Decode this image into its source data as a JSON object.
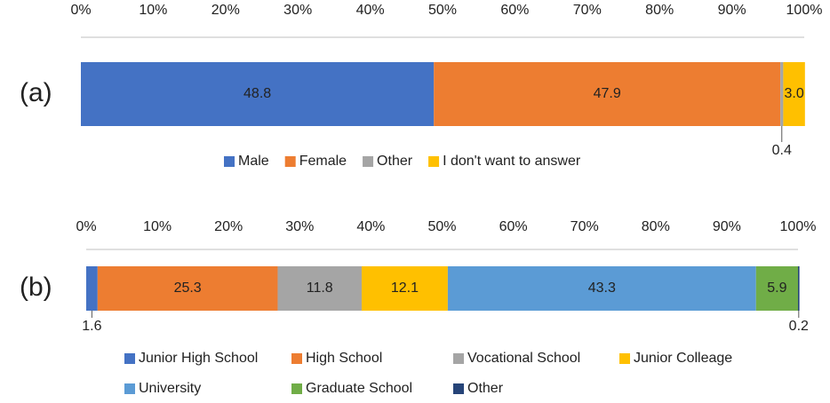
{
  "chart_data": [
    {
      "type": "stacked-bar",
      "panel_label": "(a)",
      "xlim": [
        0,
        100
      ],
      "xticks": [
        {
          "value": 0,
          "label": "0%"
        },
        {
          "value": 10,
          "label": "10%"
        },
        {
          "value": 20,
          "label": "20%"
        },
        {
          "value": 30,
          "label": "30%"
        },
        {
          "value": 40,
          "label": "40%"
        },
        {
          "value": 50,
          "label": "50%"
        },
        {
          "value": 60,
          "label": "60%"
        },
        {
          "value": 70,
          "label": "70%"
        },
        {
          "value": 80,
          "label": "80%"
        },
        {
          "value": 90,
          "label": "90%"
        },
        {
          "value": 100,
          "label": "100%"
        }
      ],
      "series": [
        {
          "name": "Male",
          "color": "#4472c4",
          "values": [
            48.8
          ]
        },
        {
          "name": "Female",
          "color": "#ed7d31",
          "values": [
            47.9
          ]
        },
        {
          "name": "Other",
          "color": "#a5a5a5",
          "values": [
            0.4
          ]
        },
        {
          "name": "I don't want to answer",
          "color": "#ffc000",
          "values": [
            3.0
          ],
          "value_labels": [
            "3.0"
          ]
        }
      ]
    },
    {
      "type": "stacked-bar",
      "panel_label": "(b)",
      "xlim": [
        0,
        100
      ],
      "xticks": [
        {
          "value": 0,
          "label": "0%"
        },
        {
          "value": 10,
          "label": "10%"
        },
        {
          "value": 20,
          "label": "20%"
        },
        {
          "value": 30,
          "label": "30%"
        },
        {
          "value": 40,
          "label": "40%"
        },
        {
          "value": 50,
          "label": "50%"
        },
        {
          "value": 60,
          "label": "60%"
        },
        {
          "value": 70,
          "label": "70%"
        },
        {
          "value": 80,
          "label": "80%"
        },
        {
          "value": 90,
          "label": "90%"
        },
        {
          "value": 100,
          "label": "100%"
        }
      ],
      "series": [
        {
          "name": "Junior High School",
          "color": "#4472c4",
          "values": [
            1.6
          ]
        },
        {
          "name": "High School",
          "color": "#ed7d31",
          "values": [
            25.3
          ]
        },
        {
          "name": "Vocational School",
          "color": "#a5a5a5",
          "values": [
            11.8
          ]
        },
        {
          "name": "Junior Colleage",
          "color": "#ffc000",
          "values": [
            12.1
          ]
        },
        {
          "name": "University",
          "color": "#5b9bd5",
          "values": [
            43.3
          ]
        },
        {
          "name": "Graduate School",
          "color": "#70ad47",
          "values": [
            5.9
          ]
        },
        {
          "name": "Other",
          "color": "#264478",
          "values": [
            0.2
          ]
        }
      ]
    }
  ]
}
